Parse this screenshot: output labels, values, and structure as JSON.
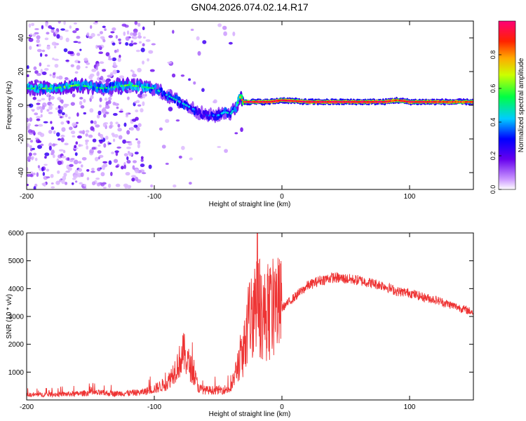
{
  "title": "GN04.2026.074.02.14.R17",
  "chart_data": [
    {
      "type": "heatmap",
      "xlabel": "Height of straight line (km)",
      "ylabel": "Frequency (Hz)",
      "xlim": [
        -200,
        150
      ],
      "ylim": [
        -50,
        50
      ],
      "xticks": [
        -200,
        -100,
        0,
        100
      ],
      "xtick_labels": [
        "-200",
        "-100",
        "0",
        "100"
      ],
      "yticks": [
        -40,
        -20,
        0,
        20,
        40
      ],
      "ytick_labels": [
        "-40",
        "-20",
        "0",
        "20",
        "40"
      ],
      "colorbar": {
        "label": "Normalized spectral amplitude",
        "range": [
          0,
          1
        ],
        "ticks": [
          0.0,
          0.2,
          0.4,
          0.6,
          0.8
        ],
        "tick_labels": [
          "0.0",
          "0.2",
          "0.4",
          "0.6",
          "0.8"
        ]
      },
      "ridge": {
        "x": [
          -200,
          -180,
          -160,
          -140,
          -120,
          -110,
          -100,
          -90,
          -80,
          -70,
          -60,
          -50,
          -45,
          -40,
          -35,
          -33,
          -30,
          -20,
          -10,
          0,
          20,
          50,
          80,
          90,
          100,
          120,
          150
        ],
        "freq": [
          10,
          10,
          12,
          10,
          12,
          11,
          10,
          6,
          2,
          -2,
          -6,
          -6,
          -4,
          -5,
          0,
          5,
          2,
          2,
          2,
          3,
          2,
          2,
          2,
          3,
          2,
          2,
          2
        ],
        "amplitude": [
          0.55,
          0.6,
          0.6,
          0.5,
          0.6,
          0.55,
          0.5,
          0.45,
          0.45,
          0.4,
          0.35,
          0.4,
          0.45,
          0.45,
          0.6,
          0.7,
          0.9,
          0.95,
          0.95,
          0.95,
          0.95,
          0.98,
          0.95,
          0.85,
          0.95,
          0.9,
          0.85
        ]
      }
    },
    {
      "type": "line",
      "xlabel": "Height of straight line (km)",
      "ylabel": "SNR (10 * v/v)",
      "xlim": [
        -200,
        150
      ],
      "ylim": [
        0,
        6000
      ],
      "xticks": [
        -200,
        -100,
        0,
        100
      ],
      "xtick_labels": [
        "-200",
        "-100",
        "0",
        "100"
      ],
      "yticks": [
        1000,
        2000,
        3000,
        4000,
        5000,
        6000
      ],
      "ytick_labels": [
        "1000",
        "2000",
        "3000",
        "4000",
        "5000",
        "6000"
      ],
      "series": [
        {
          "name": "SNR",
          "color": "#ee3333",
          "x": [
            -200,
            -180,
            -160,
            -150,
            -130,
            -110,
            -100,
            -90,
            -85,
            -80,
            -77,
            -75,
            -72,
            -68,
            -65,
            -60,
            -50,
            -40,
            -35,
            -33,
            -30,
            -27,
            -25,
            -23,
            -21,
            -20,
            -19,
            -18,
            -15,
            -10,
            -5,
            0,
            10,
            20,
            30,
            40,
            50,
            60,
            70,
            80,
            90,
            100,
            110,
            120,
            130,
            140,
            150
          ],
          "values": [
            180,
            200,
            220,
            260,
            230,
            270,
            400,
            600,
            1000,
            1400,
            1700,
            1500,
            1200,
            800,
            400,
            350,
            350,
            400,
            1200,
            1500,
            1800,
            2400,
            3000,
            3200,
            3500,
            4000,
            5200,
            3500,
            3000,
            3100,
            3400,
            3300,
            3700,
            4100,
            4300,
            4400,
            4350,
            4300,
            4200,
            4100,
            3900,
            3850,
            3700,
            3600,
            3450,
            3300,
            3150
          ]
        }
      ]
    }
  ]
}
